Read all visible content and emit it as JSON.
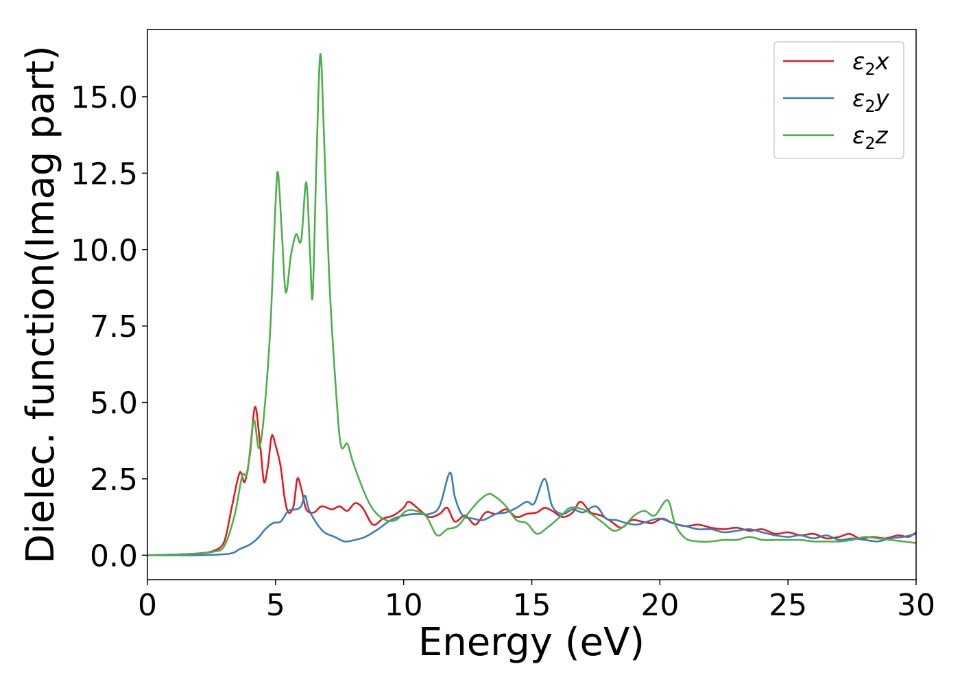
{
  "chart_data": {
    "type": "line",
    "xlabel": "Energy (eV)",
    "ylabel": "Dielec. function(Imag part)",
    "xlim": [
      0,
      30
    ],
    "ylim": [
      -0.8,
      17.2
    ],
    "xticks": [
      0,
      5,
      10,
      15,
      20,
      25,
      30
    ],
    "xtick_labels": [
      "0",
      "5",
      "10",
      "15",
      "20",
      "25",
      "30"
    ],
    "yticks": [
      0.0,
      2.5,
      5.0,
      7.5,
      10.0,
      12.5,
      15.0
    ],
    "ytick_labels": [
      "0.0",
      "2.5",
      "5.0",
      "7.5",
      "10.0",
      "12.5",
      "15.0"
    ],
    "grid": false,
    "legend_position": "top-right",
    "colors": {
      "x": "#e41a1c",
      "y": "#377eb8",
      "z": "#4daf4a"
    },
    "series": [
      {
        "key": "x",
        "name_main": "ε",
        "name_sub": "2",
        "name_suffix": "x",
        "color": "#e41a1c",
        "points": [
          [
            0,
            0
          ],
          [
            1,
            0.02
          ],
          [
            2,
            0.06
          ],
          [
            2.6,
            0.15
          ],
          [
            3.0,
            0.45
          ],
          [
            3.3,
            1.6
          ],
          [
            3.6,
            2.7
          ],
          [
            3.8,
            2.4
          ],
          [
            4.0,
            3.3
          ],
          [
            4.2,
            4.85
          ],
          [
            4.4,
            3.6
          ],
          [
            4.55,
            2.4
          ],
          [
            4.7,
            2.9
          ],
          [
            4.85,
            3.9
          ],
          [
            5.0,
            3.6
          ],
          [
            5.2,
            2.9
          ],
          [
            5.35,
            1.9
          ],
          [
            5.5,
            1.4
          ],
          [
            5.7,
            1.6
          ],
          [
            5.85,
            2.5
          ],
          [
            6.0,
            2.2
          ],
          [
            6.2,
            1.5
          ],
          [
            6.5,
            1.4
          ],
          [
            6.8,
            1.6
          ],
          [
            7.2,
            1.5
          ],
          [
            7.5,
            1.6
          ],
          [
            7.8,
            1.45
          ],
          [
            8.1,
            1.7
          ],
          [
            8.4,
            1.55
          ],
          [
            8.8,
            1.0
          ],
          [
            9.2,
            1.2
          ],
          [
            9.6,
            1.3
          ],
          [
            10.0,
            1.55
          ],
          [
            10.2,
            1.75
          ],
          [
            10.6,
            1.5
          ],
          [
            11.0,
            1.25
          ],
          [
            11.4,
            1.35
          ],
          [
            11.7,
            1.55
          ],
          [
            12.0,
            1.1
          ],
          [
            12.4,
            1.3
          ],
          [
            12.8,
            1.0
          ],
          [
            13.2,
            1.4
          ],
          [
            13.6,
            1.35
          ],
          [
            14.0,
            1.5
          ],
          [
            14.4,
            1.25
          ],
          [
            14.8,
            1.35
          ],
          [
            15.2,
            1.4
          ],
          [
            15.5,
            1.55
          ],
          [
            15.8,
            1.45
          ],
          [
            16.2,
            1.25
          ],
          [
            16.6,
            1.4
          ],
          [
            16.9,
            1.75
          ],
          [
            17.3,
            1.4
          ],
          [
            17.7,
            1.3
          ],
          [
            18.1,
            1.1
          ],
          [
            18.5,
            0.9
          ],
          [
            18.9,
            1.15
          ],
          [
            19.3,
            1.1
          ],
          [
            19.7,
            1.05
          ],
          [
            20.1,
            1.2
          ],
          [
            20.5,
            1.05
          ],
          [
            21.0,
            0.95
          ],
          [
            21.5,
            1.0
          ],
          [
            22.0,
            0.9
          ],
          [
            22.5,
            0.85
          ],
          [
            23.0,
            0.9
          ],
          [
            23.5,
            0.8
          ],
          [
            24.0,
            0.85
          ],
          [
            24.5,
            0.7
          ],
          [
            25.0,
            0.75
          ],
          [
            25.5,
            0.65
          ],
          [
            26.0,
            0.7
          ],
          [
            26.5,
            0.55
          ],
          [
            27.0,
            0.6
          ],
          [
            27.4,
            0.7
          ],
          [
            27.8,
            0.55
          ],
          [
            28.3,
            0.6
          ],
          [
            28.8,
            0.55
          ],
          [
            29.3,
            0.65
          ],
          [
            29.7,
            0.6
          ],
          [
            30,
            0.75
          ]
        ]
      },
      {
        "key": "y",
        "name_main": "ε",
        "name_sub": "2",
        "name_suffix": "y",
        "color": "#377eb8",
        "points": [
          [
            0,
            0
          ],
          [
            2,
            0.0
          ],
          [
            3.2,
            0.05
          ],
          [
            3.6,
            0.2
          ],
          [
            4.0,
            0.35
          ],
          [
            4.3,
            0.55
          ],
          [
            4.6,
            0.85
          ],
          [
            4.9,
            1.05
          ],
          [
            5.2,
            1.1
          ],
          [
            5.5,
            1.45
          ],
          [
            5.8,
            1.5
          ],
          [
            6.0,
            1.6
          ],
          [
            6.15,
            1.95
          ],
          [
            6.3,
            1.5
          ],
          [
            6.6,
            1.05
          ],
          [
            6.9,
            0.75
          ],
          [
            7.3,
            0.6
          ],
          [
            7.7,
            0.45
          ],
          [
            8.1,
            0.5
          ],
          [
            8.5,
            0.6
          ],
          [
            9.0,
            0.85
          ],
          [
            9.5,
            1.15
          ],
          [
            10.0,
            1.3
          ],
          [
            10.5,
            1.35
          ],
          [
            11.0,
            1.35
          ],
          [
            11.4,
            1.6
          ],
          [
            11.8,
            2.7
          ],
          [
            12.0,
            1.9
          ],
          [
            12.3,
            1.3
          ],
          [
            12.7,
            1.2
          ],
          [
            13.1,
            1.15
          ],
          [
            13.6,
            1.35
          ],
          [
            14.0,
            1.4
          ],
          [
            14.4,
            1.55
          ],
          [
            14.8,
            1.75
          ],
          [
            15.1,
            1.7
          ],
          [
            15.5,
            2.5
          ],
          [
            15.8,
            1.6
          ],
          [
            16.2,
            1.35
          ],
          [
            16.6,
            1.5
          ],
          [
            17.0,
            1.4
          ],
          [
            17.5,
            1.6
          ],
          [
            17.9,
            1.2
          ],
          [
            18.3,
            1.15
          ],
          [
            18.7,
            1.05
          ],
          [
            19.1,
            1.0
          ],
          [
            19.5,
            1.1
          ],
          [
            20.0,
            1.2
          ],
          [
            20.5,
            1.05
          ],
          [
            21.0,
            0.95
          ],
          [
            21.5,
            0.85
          ],
          [
            22.0,
            0.85
          ],
          [
            22.5,
            0.75
          ],
          [
            23.0,
            0.8
          ],
          [
            23.5,
            0.85
          ],
          [
            24.0,
            0.75
          ],
          [
            24.5,
            0.65
          ],
          [
            25.0,
            0.6
          ],
          [
            25.5,
            0.65
          ],
          [
            26.0,
            0.55
          ],
          [
            26.5,
            0.65
          ],
          [
            27.0,
            0.5
          ],
          [
            27.5,
            0.55
          ],
          [
            28.0,
            0.5
          ],
          [
            28.5,
            0.45
          ],
          [
            29.0,
            0.55
          ],
          [
            29.5,
            0.6
          ],
          [
            30,
            0.7
          ]
        ]
      },
      {
        "key": "z",
        "name_main": "ε",
        "name_sub": "2",
        "name_suffix": "z",
        "color": "#4daf4a",
        "points": [
          [
            0,
            0
          ],
          [
            1,
            0.02
          ],
          [
            2,
            0.05
          ],
          [
            2.6,
            0.12
          ],
          [
            3.0,
            0.3
          ],
          [
            3.4,
            1.3
          ],
          [
            3.7,
            2.6
          ],
          [
            3.9,
            2.7
          ],
          [
            4.15,
            4.4
          ],
          [
            4.35,
            3.5
          ],
          [
            4.55,
            4.6
          ],
          [
            4.8,
            7.5
          ],
          [
            5.0,
            11.5
          ],
          [
            5.1,
            12.5
          ],
          [
            5.25,
            10.5
          ],
          [
            5.4,
            8.6
          ],
          [
            5.6,
            9.8
          ],
          [
            5.8,
            10.5
          ],
          [
            6.0,
            10.3
          ],
          [
            6.2,
            12.2
          ],
          [
            6.35,
            9.8
          ],
          [
            6.45,
            8.5
          ],
          [
            6.6,
            13.0
          ],
          [
            6.75,
            16.4
          ],
          [
            6.9,
            13.5
          ],
          [
            7.1,
            9.0
          ],
          [
            7.35,
            5.5
          ],
          [
            7.55,
            3.6
          ],
          [
            7.8,
            3.65
          ],
          [
            8.0,
            3.1
          ],
          [
            8.3,
            2.4
          ],
          [
            8.6,
            1.8
          ],
          [
            8.9,
            1.4
          ],
          [
            9.3,
            1.15
          ],
          [
            9.7,
            1.15
          ],
          [
            10.1,
            1.45
          ],
          [
            10.5,
            1.45
          ],
          [
            10.9,
            1.25
          ],
          [
            11.3,
            0.65
          ],
          [
            11.7,
            0.85
          ],
          [
            12.1,
            0.95
          ],
          [
            12.5,
            1.35
          ],
          [
            12.9,
            1.75
          ],
          [
            13.3,
            2.0
          ],
          [
            13.6,
            1.9
          ],
          [
            14.0,
            1.6
          ],
          [
            14.4,
            1.15
          ],
          [
            14.8,
            1.05
          ],
          [
            15.2,
            0.7
          ],
          [
            15.6,
            0.9
          ],
          [
            16.1,
            1.25
          ],
          [
            16.5,
            1.55
          ],
          [
            17.0,
            1.5
          ],
          [
            17.4,
            1.3
          ],
          [
            17.8,
            1.05
          ],
          [
            18.2,
            0.8
          ],
          [
            18.6,
            0.95
          ],
          [
            19.0,
            1.3
          ],
          [
            19.4,
            1.45
          ],
          [
            19.8,
            1.3
          ],
          [
            20.3,
            1.8
          ],
          [
            20.6,
            1.0
          ],
          [
            21.0,
            0.55
          ],
          [
            21.5,
            0.45
          ],
          [
            22.0,
            0.45
          ],
          [
            22.5,
            0.5
          ],
          [
            23.0,
            0.5
          ],
          [
            23.5,
            0.6
          ],
          [
            24.0,
            0.5
          ],
          [
            24.5,
            0.5
          ],
          [
            25.0,
            0.5
          ],
          [
            25.5,
            0.5
          ],
          [
            26.0,
            0.45
          ],
          [
            26.5,
            0.45
          ],
          [
            27.0,
            0.45
          ],
          [
            27.5,
            0.5
          ],
          [
            28.0,
            0.6
          ],
          [
            28.5,
            0.55
          ],
          [
            29.0,
            0.5
          ],
          [
            29.5,
            0.45
          ],
          [
            30,
            0.4
          ]
        ]
      }
    ]
  }
}
